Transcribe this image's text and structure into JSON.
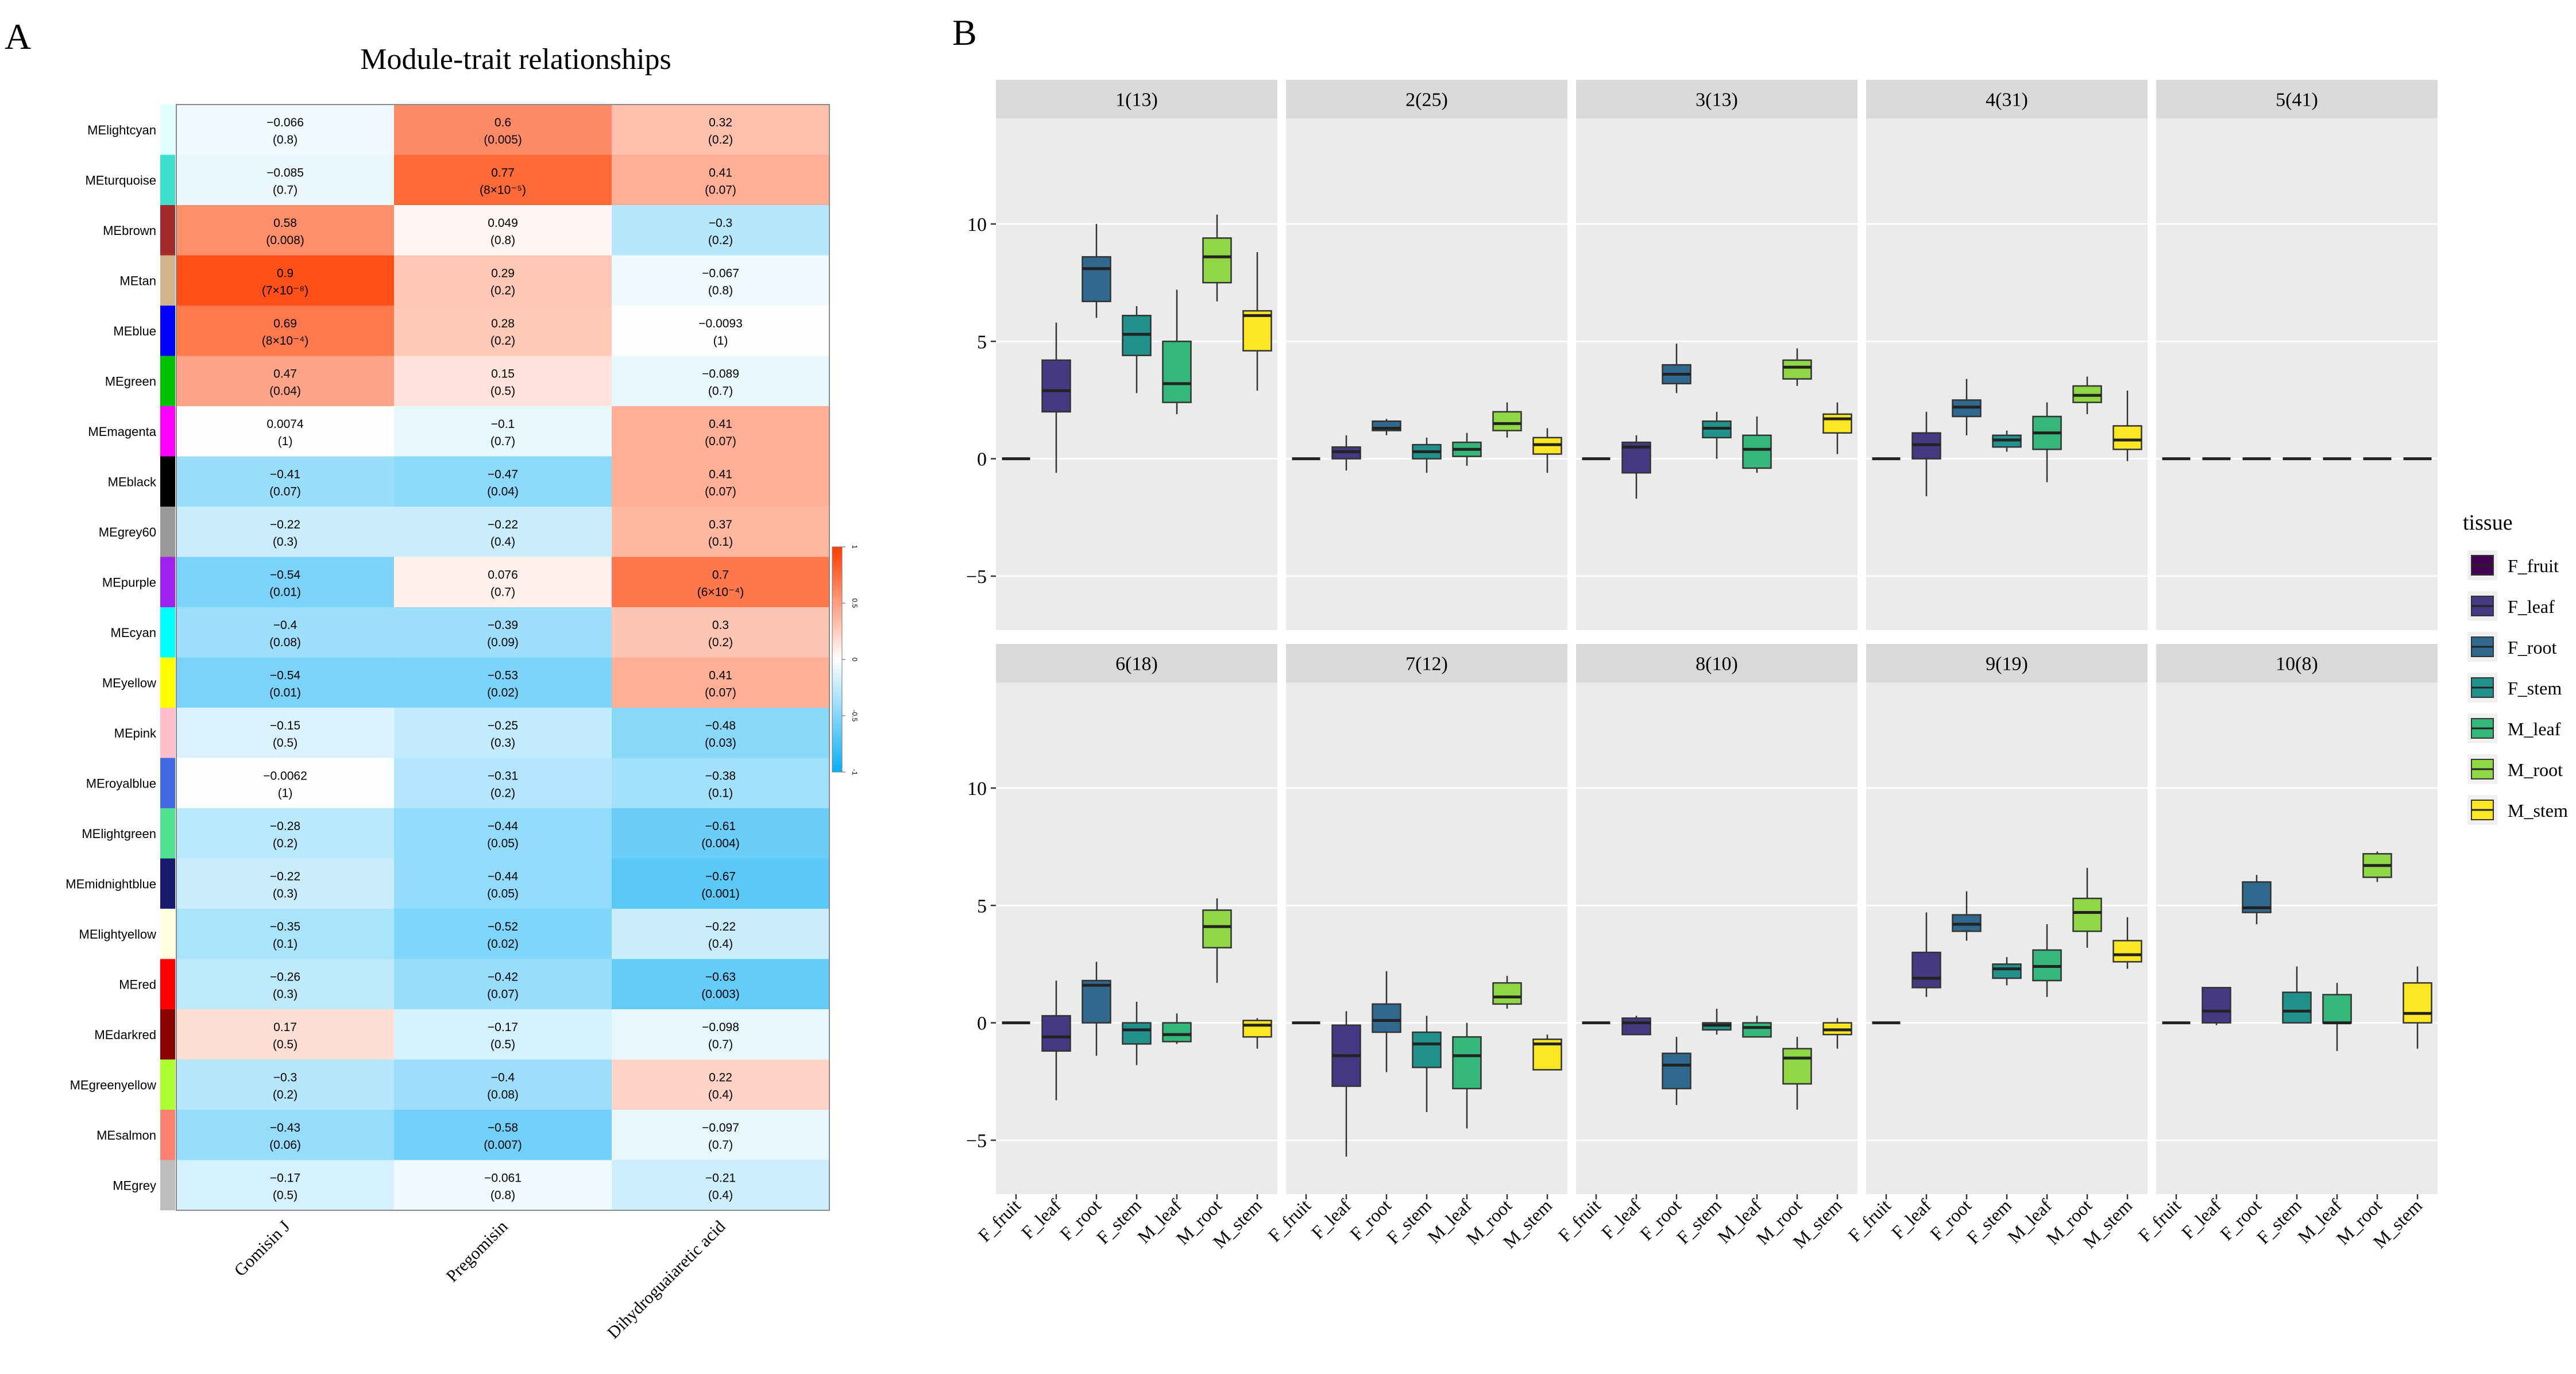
{
  "panel_labels": {
    "a": "A",
    "b": "B"
  },
  "colors": {
    "neg": "#0AAEF5",
    "zero": "#FFFFFF",
    "pos": "#FF3D00",
    "facet_bg": "#EBEBEB",
    "strip_bg": "#D9D9D9",
    "tissue": {
      "F_fruit": "#440154",
      "F_leaf": "#443A83",
      "F_root": "#31688E",
      "F_stem": "#21918C",
      "M_leaf": "#35B779",
      "M_root": "#8FD744",
      "M_stem": "#FDE725"
    }
  },
  "chart_data": [
    {
      "type": "heatmap",
      "title": "Module-trait relationships",
      "columns": [
        "Gomisin J",
        "Pregomisin",
        "Dihydroguaiaretic acid"
      ],
      "legend": {
        "range": [
          -1,
          1
        ],
        "ticks": [
          "1",
          "0.5",
          "0",
          "-0.5",
          "-1"
        ]
      },
      "rows": [
        {
          "name": "MElightcyan",
          "color": "#E0FFFF",
          "r": [
            -0.066,
            0.6,
            0.32
          ],
          "p": [
            "(0.8)",
            "(0.005)",
            "(0.2)"
          ]
        },
        {
          "name": "MEturquoise",
          "color": "#40E0D0",
          "r": [
            -0.085,
            0.77,
            0.41
          ],
          "p": [
            "(0.7)",
            "(8×10⁻⁵)",
            "(0.07)"
          ]
        },
        {
          "name": "MEbrown",
          "color": "#A52A2A",
          "r": [
            0.58,
            0.049,
            -0.3
          ],
          "p": [
            "(0.008)",
            "(0.8)",
            "(0.2)"
          ]
        },
        {
          "name": "MEtan",
          "color": "#D2B48C",
          "r": [
            0.9,
            0.29,
            -0.067
          ],
          "p": [
            "(7×10⁻⁸)",
            "(0.2)",
            "(0.8)"
          ]
        },
        {
          "name": "MEblue",
          "color": "#0000FF",
          "r": [
            0.69,
            0.28,
            -0.0093
          ],
          "p": [
            "(8×10⁻⁴)",
            "(0.2)",
            "(1)"
          ]
        },
        {
          "name": "MEgreen",
          "color": "#00C000",
          "r": [
            0.47,
            0.15,
            -0.089
          ],
          "p": [
            "(0.04)",
            "(0.5)",
            "(0.7)"
          ]
        },
        {
          "name": "MEmagenta",
          "color": "#FF00FF",
          "r": [
            0.0074,
            -0.1,
            0.41
          ],
          "p": [
            "(1)",
            "(0.7)",
            "(0.07)"
          ]
        },
        {
          "name": "MEblack",
          "color": "#000000",
          "r": [
            -0.41,
            -0.47,
            0.41
          ],
          "p": [
            "(0.07)",
            "(0.04)",
            "(0.07)"
          ]
        },
        {
          "name": "MEgrey60",
          "color": "#999999",
          "r": [
            -0.22,
            -0.22,
            0.37
          ],
          "p": [
            "(0.3)",
            "(0.4)",
            "(0.1)"
          ]
        },
        {
          "name": "MEpurple",
          "color": "#A020F0",
          "r": [
            -0.54,
            0.076,
            0.7
          ],
          "p": [
            "(0.01)",
            "(0.7)",
            "(6×10⁻⁴)"
          ]
        },
        {
          "name": "MEcyan",
          "color": "#00FFFF",
          "r": [
            -0.4,
            -0.39,
            0.3
          ],
          "p": [
            "(0.08)",
            "(0.09)",
            "(0.2)"
          ]
        },
        {
          "name": "MEyellow",
          "color": "#FFFF00",
          "r": [
            -0.54,
            -0.53,
            0.41
          ],
          "p": [
            "(0.01)",
            "(0.02)",
            "(0.07)"
          ]
        },
        {
          "name": "MEpink",
          "color": "#FFC0CB",
          "r": [
            -0.15,
            -0.25,
            -0.48
          ],
          "p": [
            "(0.5)",
            "(0.3)",
            "(0.03)"
          ]
        },
        {
          "name": "MEroyalblue",
          "color": "#4169E1",
          "r": [
            -0.0062,
            -0.31,
            -0.38
          ],
          "p": [
            "(1)",
            "(0.2)",
            "(0.1)"
          ]
        },
        {
          "name": "MElightgreen",
          "color": "#50E090",
          "r": [
            -0.28,
            -0.44,
            -0.61
          ],
          "p": [
            "(0.2)",
            "(0.05)",
            "(0.004)"
          ]
        },
        {
          "name": "MEmidnightblue",
          "color": "#191970",
          "r": [
            -0.22,
            -0.44,
            -0.67
          ],
          "p": [
            "(0.3)",
            "(0.05)",
            "(0.001)"
          ]
        },
        {
          "name": "MElightyellow",
          "color": "#FFFFE0",
          "r": [
            -0.35,
            -0.52,
            -0.22
          ],
          "p": [
            "(0.1)",
            "(0.02)",
            "(0.4)"
          ]
        },
        {
          "name": "MEred",
          "color": "#FF0000",
          "r": [
            -0.26,
            -0.42,
            -0.63
          ],
          "p": [
            "(0.3)",
            "(0.07)",
            "(0.003)"
          ]
        },
        {
          "name": "MEdarkred",
          "color": "#8B0000",
          "r": [
            0.17,
            -0.17,
            -0.098
          ],
          "p": [
            "(0.5)",
            "(0.5)",
            "(0.7)"
          ]
        },
        {
          "name": "MEgreenyellow",
          "color": "#ADFF2F",
          "r": [
            -0.3,
            -0.4,
            0.22
          ],
          "p": [
            "(0.2)",
            "(0.08)",
            "(0.4)"
          ]
        },
        {
          "name": "MEsalmon",
          "color": "#FA8072",
          "r": [
            -0.43,
            -0.58,
            -0.097
          ],
          "p": [
            "(0.06)",
            "(0.007)",
            "(0.7)"
          ]
        },
        {
          "name": "MEgrey",
          "color": "#BEBEBE",
          "r": [
            -0.17,
            -0.061,
            -0.21
          ],
          "p": [
            "(0.5)",
            "(0.8)",
            "(0.4)"
          ]
        }
      ]
    },
    {
      "type": "boxplot",
      "ylim": [
        -7.3,
        14.5
      ],
      "yticks": [
        -5,
        0,
        5,
        10
      ],
      "categories": [
        "F_fruit",
        "F_leaf",
        "F_root",
        "F_stem",
        "M_leaf",
        "M_root",
        "M_stem"
      ],
      "legend_title": "tissue",
      "facets": [
        {
          "label": "1(13)",
          "boxes": [
            [
              0,
              0,
              0,
              0,
              0
            ],
            [
              -0.6,
              2.0,
              2.9,
              4.2,
              5.8
            ],
            [
              6.0,
              6.7,
              8.1,
              8.6,
              10.0
            ],
            [
              2.8,
              4.4,
              5.3,
              6.1,
              6.5
            ],
            [
              1.9,
              2.4,
              3.2,
              5.0,
              7.2
            ],
            [
              6.7,
              7.5,
              8.6,
              9.4,
              10.4
            ],
            [
              2.9,
              4.6,
              6.1,
              6.3,
              8.8
            ]
          ]
        },
        {
          "label": "2(25)",
          "boxes": [
            [
              0,
              0,
              0,
              0,
              0
            ],
            [
              -0.5,
              0.0,
              0.3,
              0.5,
              1.0
            ],
            [
              1.0,
              1.2,
              1.3,
              1.6,
              1.7
            ],
            [
              -0.6,
              0.0,
              0.3,
              0.6,
              0.9
            ],
            [
              -0.3,
              0.1,
              0.4,
              0.7,
              1.1
            ],
            [
              0.9,
              1.2,
              1.5,
              2.0,
              2.4
            ],
            [
              -0.6,
              0.2,
              0.6,
              0.9,
              1.3
            ]
          ]
        },
        {
          "label": "3(13)",
          "boxes": [
            [
              0,
              0,
              0,
              0,
              0
            ],
            [
              -1.7,
              -0.6,
              0.5,
              0.7,
              1.0
            ],
            [
              2.8,
              3.2,
              3.6,
              4.0,
              4.9
            ],
            [
              0.0,
              0.9,
              1.3,
              1.6,
              2.0
            ],
            [
              -0.6,
              -0.4,
              0.4,
              1.0,
              1.8
            ],
            [
              3.1,
              3.4,
              3.9,
              4.2,
              4.7
            ],
            [
              0.2,
              1.1,
              1.7,
              1.9,
              2.4
            ]
          ]
        },
        {
          "label": "4(31)",
          "boxes": [
            [
              0,
              0,
              0,
              0,
              0
            ],
            [
              -1.6,
              0.0,
              0.6,
              1.1,
              2.0
            ],
            [
              1.0,
              1.8,
              2.2,
              2.5,
              3.4
            ],
            [
              0.3,
              0.5,
              0.8,
              1.0,
              1.2
            ],
            [
              -1.0,
              0.4,
              1.1,
              1.8,
              2.4
            ],
            [
              1.9,
              2.4,
              2.7,
              3.1,
              3.5
            ],
            [
              -0.1,
              0.4,
              0.8,
              1.4,
              2.9
            ]
          ]
        },
        {
          "label": "5(41)",
          "boxes": [
            [
              0,
              0,
              0,
              0,
              0
            ],
            [
              0,
              0,
              0,
              0,
              0
            ],
            [
              0,
              0,
              0,
              0,
              0
            ],
            [
              0,
              0,
              0,
              0,
              0
            ],
            [
              0,
              0,
              0,
              0,
              0
            ],
            [
              0,
              0,
              0,
              0,
              0
            ],
            [
              0,
              0,
              0,
              0,
              0
            ]
          ]
        },
        {
          "label": "6(18)",
          "boxes": [
            [
              0,
              0,
              0,
              0,
              0
            ],
            [
              -3.3,
              -1.2,
              -0.6,
              0.3,
              1.8
            ],
            [
              -1.4,
              0.0,
              1.6,
              1.8,
              2.6
            ],
            [
              -1.8,
              -0.9,
              -0.3,
              0.0,
              0.9
            ],
            [
              -0.9,
              -0.8,
              -0.5,
              0.0,
              0.4
            ],
            [
              1.7,
              3.2,
              4.1,
              4.8,
              5.3
            ],
            [
              -1.1,
              -0.6,
              -0.1,
              0.1,
              0.2
            ]
          ]
        },
        {
          "label": "7(12)",
          "boxes": [
            [
              0,
              0,
              0,
              0,
              0
            ],
            [
              -5.7,
              -2.7,
              -1.4,
              -0.1,
              0.5
            ],
            [
              -2.1,
              -0.4,
              0.1,
              0.8,
              2.2
            ],
            [
              -3.8,
              -1.9,
              -0.9,
              -0.4,
              0.3
            ],
            [
              -4.5,
              -2.8,
              -1.4,
              -0.6,
              0.0
            ],
            [
              0.6,
              0.8,
              1.1,
              1.7,
              2.0
            ],
            [
              -2.0,
              -2.0,
              -0.9,
              -0.7,
              -0.5
            ]
          ]
        },
        {
          "label": "8(10)",
          "boxes": [
            [
              0,
              0,
              0,
              0,
              0
            ],
            [
              -0.5,
              -0.5,
              0.0,
              0.2,
              0.3
            ],
            [
              -3.5,
              -2.8,
              -1.8,
              -1.3,
              -0.6
            ],
            [
              -0.5,
              -0.3,
              -0.1,
              0.0,
              0.6
            ],
            [
              -0.6,
              -0.6,
              -0.2,
              0.0,
              0.3
            ],
            [
              -3.7,
              -2.6,
              -1.5,
              -1.1,
              -0.6
            ],
            [
              -1.1,
              -0.5,
              -0.3,
              0.0,
              0.2
            ]
          ]
        },
        {
          "label": "9(19)",
          "boxes": [
            [
              0,
              0,
              0,
              0,
              0
            ],
            [
              1.1,
              1.5,
              1.9,
              3.0,
              4.7
            ],
            [
              3.5,
              3.9,
              4.2,
              4.6,
              5.6
            ],
            [
              1.6,
              1.9,
              2.3,
              2.5,
              2.8
            ],
            [
              1.1,
              1.8,
              2.4,
              3.1,
              4.2
            ],
            [
              3.2,
              3.9,
              4.7,
              5.3,
              6.6
            ],
            [
              2.3,
              2.6,
              2.9,
              3.5,
              4.5
            ]
          ]
        },
        {
          "label": "10(8)",
          "boxes": [
            [
              0,
              0,
              0,
              0,
              0
            ],
            [
              -0.1,
              0.0,
              0.5,
              1.5,
              1.5
            ],
            [
              4.2,
              4.7,
              4.9,
              6.0,
              6.3
            ],
            [
              0.0,
              0.0,
              0.5,
              1.3,
              2.4
            ],
            [
              -1.2,
              0.0,
              0.0,
              1.2,
              1.7
            ],
            [
              6.0,
              6.2,
              6.7,
              7.2,
              7.3
            ],
            [
              -1.1,
              0.0,
              0.4,
              1.7,
              2.4
            ]
          ]
        }
      ]
    }
  ]
}
